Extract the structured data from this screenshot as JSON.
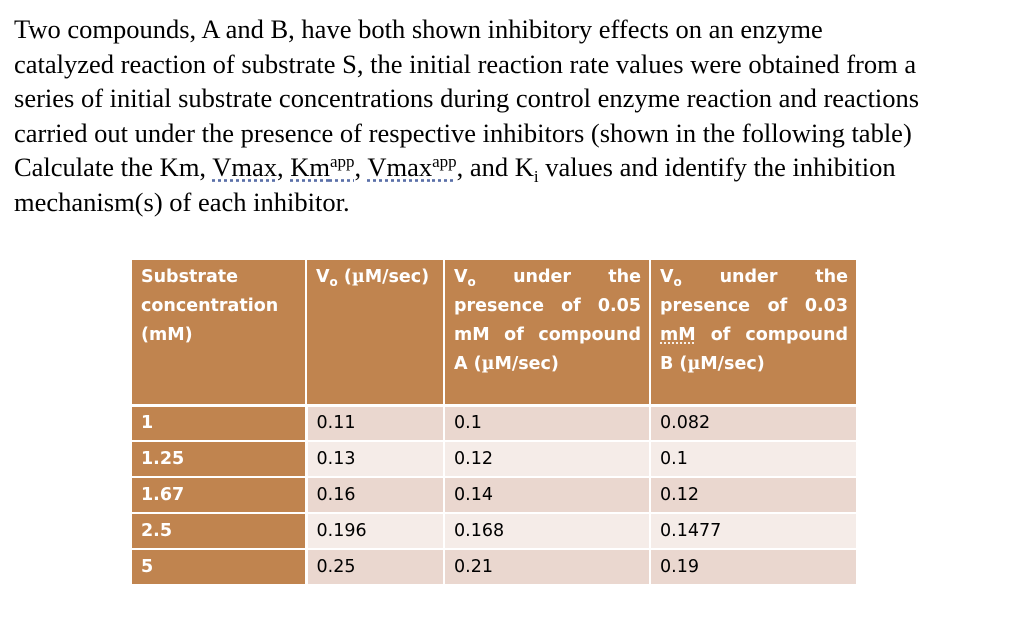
{
  "question": {
    "line1": "Two compounds, A and B, have both shown inhibitory effects on an enzyme",
    "line2": "catalyzed reaction of substrate S, the initial reaction rate values were obtained from a",
    "line3": "series of initial substrate concentrations during control enzyme reaction and reactions",
    "line4": "carried out under the presence of respective inhibitors (shown in the following table)",
    "line5_prefix": "Calculate the Km, ",
    "vmax": "Vmax",
    "sep1": ", ",
    "km": "Km",
    "km_sup": "app",
    "sep2": ", ",
    "vmax2": "Vmax",
    "vmax2_sup": "app",
    "sep3": ", and K",
    "ki_sub": "i",
    "line5_suffix": " values and identify the inhibition",
    "line6": "mechanism(s) of each inhibitor."
  },
  "table": {
    "headers": {
      "substrate": "Substrate concentration (mM)",
      "v0_prefix": "V",
      "v0_sub": "o",
      "v0_rest": " (",
      "v0_mu": "µ",
      "v0_unit": "M/sec)",
      "colA_prefix": "V",
      "colA_sub": "o",
      "colA_text": " under the presence of 0.05 mM of compound A (",
      "colA_mu": "µ",
      "colA_unit": "M/sec)",
      "colB_prefix": "V",
      "colB_sub": "o",
      "colB_text1": " under the presence of 0.03 ",
      "colB_mm": "mM",
      "colB_text2": " of compound B (",
      "colB_mu": "µ",
      "colB_unit": "M/sec)"
    },
    "rows": [
      {
        "substrate": "1",
        "v0": "0.11",
        "a": "0.1",
        "b": "0.082"
      },
      {
        "substrate": "1.25",
        "v0": "0.13",
        "a": "0.12",
        "b": "0.1"
      },
      {
        "substrate": "1.67",
        "v0": "0.16",
        "a": "0.14",
        "b": "0.12"
      },
      {
        "substrate": "2.5",
        "v0": "0.196",
        "a": "0.168",
        "b": "0.1477"
      },
      {
        "substrate": "5",
        "v0": "0.25",
        "a": "0.21",
        "b": "0.19"
      }
    ]
  },
  "colors": {
    "header_bg": "#c0844f",
    "row_odd": "#ead7cf",
    "row_even": "#f5ece8"
  }
}
